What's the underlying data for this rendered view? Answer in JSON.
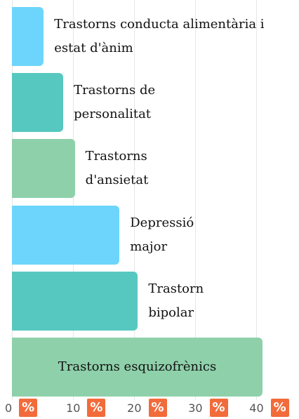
{
  "chart_data": {
    "type": "bar",
    "orientation": "horizontal",
    "categories": [
      "Trastorns conducta alimentària i estat d'ànim",
      "Trastorns de personalitat",
      "Trastorns d'ansietat",
      "Depressió major",
      "Trastorn bipolar",
      "Trastorns esquizofrènics"
    ],
    "values": [
      5.2,
      8.4,
      10.3,
      17.6,
      20.6,
      41
    ],
    "colors": [
      "#6dd5fb",
      "#57c8c0",
      "#8ed0aa",
      "#6dd5fb",
      "#57c8c0",
      "#8ed0aa"
    ],
    "xlim": [
      0,
      41
    ],
    "xticks": [
      0,
      10,
      20,
      30,
      40
    ],
    "unit": "%",
    "grid": true
  }
}
